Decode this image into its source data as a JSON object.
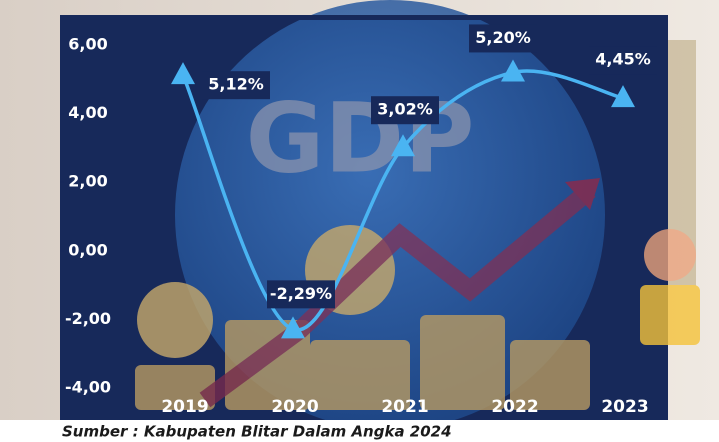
{
  "chart_data": {
    "type": "line",
    "watermark": "GDP",
    "categories": [
      "2019",
      "2020",
      "2021",
      "2022",
      "2023"
    ],
    "values": [
      5.12,
      -2.29,
      3.02,
      5.2,
      4.45
    ],
    "value_labels": [
      "5,12%",
      "-2,29%",
      "3,02%",
      "5,20%",
      "4,45%"
    ],
    "color": "#4ab4f2",
    "ylim": [
      -4,
      6
    ],
    "yticks": [
      {
        "value": -4,
        "label": "-4,00"
      },
      {
        "value": -2,
        "label": "-2,00"
      },
      {
        "value": 0,
        "label": "0,00"
      },
      {
        "value": 2,
        "label": "2,00"
      },
      {
        "value": 4,
        "label": "4,00"
      },
      {
        "value": 6,
        "label": "6,00"
      }
    ],
    "source": "Sumber : Kabupaten Blitar Dalam Angka 2024"
  }
}
